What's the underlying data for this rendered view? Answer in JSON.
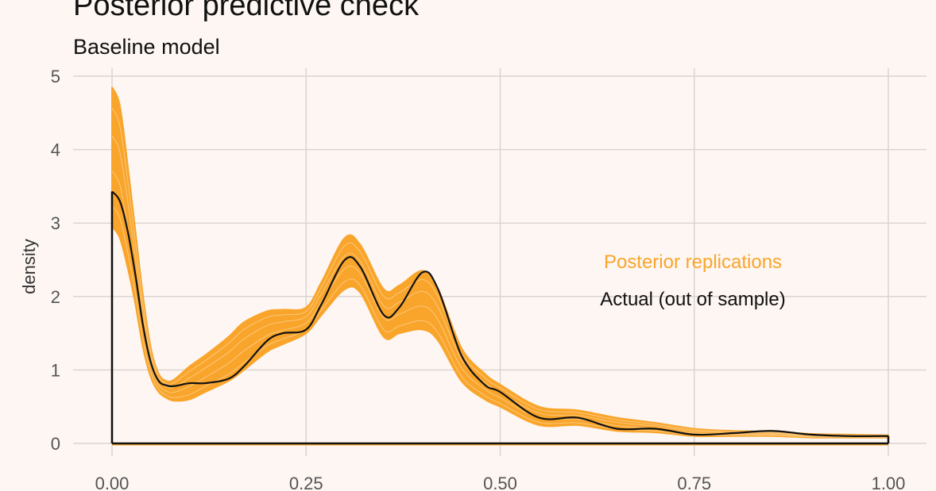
{
  "chart_data": {
    "type": "line",
    "title": "Posterior predictive check",
    "subtitle": "Baseline model",
    "xlabel": "",
    "ylabel": "density",
    "xlim": [
      0,
      1
    ],
    "ylim": [
      0,
      5
    ],
    "xticks": [
      "0.00",
      "0.25",
      "0.50",
      "0.75",
      "1.00"
    ],
    "yticks": [
      "0",
      "1",
      "2",
      "3",
      "4",
      "5"
    ],
    "grid": true,
    "x": [
      0,
      0.01,
      0.02,
      0.03,
      0.04,
      0.05,
      0.06,
      0.07,
      0.08,
      0.1,
      0.12,
      0.15,
      0.17,
      0.2,
      0.22,
      0.25,
      0.27,
      0.3,
      0.32,
      0.35,
      0.37,
      0.4,
      0.42,
      0.45,
      0.48,
      0.5,
      0.55,
      0.6,
      0.65,
      0.7,
      0.75,
      0.8,
      0.85,
      0.9,
      0.95,
      1.0
    ],
    "series": [
      {
        "name": "Posterior replications",
        "color": "#f9a52b",
        "upper": [
          4.85,
          4.6,
          3.8,
          2.9,
          2.0,
          1.3,
          0.95,
          0.85,
          0.87,
          1.05,
          1.2,
          1.45,
          1.65,
          1.8,
          1.82,
          1.85,
          2.2,
          2.8,
          2.7,
          2.1,
          2.15,
          2.35,
          2.1,
          1.3,
          0.95,
          0.8,
          0.5,
          0.45,
          0.35,
          0.28,
          0.2,
          0.17,
          0.16,
          0.13,
          0.12,
          0.11
        ],
        "lower": [
          2.95,
          2.8,
          2.4,
          1.9,
          1.3,
          0.9,
          0.7,
          0.62,
          0.58,
          0.6,
          0.7,
          0.85,
          1.0,
          1.25,
          1.35,
          1.5,
          1.75,
          2.1,
          2.05,
          1.45,
          1.5,
          1.55,
          1.4,
          0.85,
          0.6,
          0.5,
          0.25,
          0.25,
          0.17,
          0.15,
          0.1,
          0.1,
          0.1,
          0.08,
          0.08,
          0.08
        ]
      },
      {
        "name": "Actual (out of sample)",
        "color": "#111111",
        "values": [
          3.43,
          3.3,
          2.9,
          2.3,
          1.6,
          1.1,
          0.85,
          0.79,
          0.78,
          0.82,
          0.82,
          0.88,
          1.05,
          1.4,
          1.5,
          1.55,
          1.9,
          2.5,
          2.4,
          1.75,
          1.85,
          2.33,
          2.1,
          1.2,
          0.8,
          0.7,
          0.35,
          0.35,
          0.2,
          0.2,
          0.12,
          0.14,
          0.17,
          0.12,
          0.1,
          0.1
        ]
      }
    ],
    "annotations": [
      "Posterior replications",
      "Actual (out of sample)"
    ]
  }
}
